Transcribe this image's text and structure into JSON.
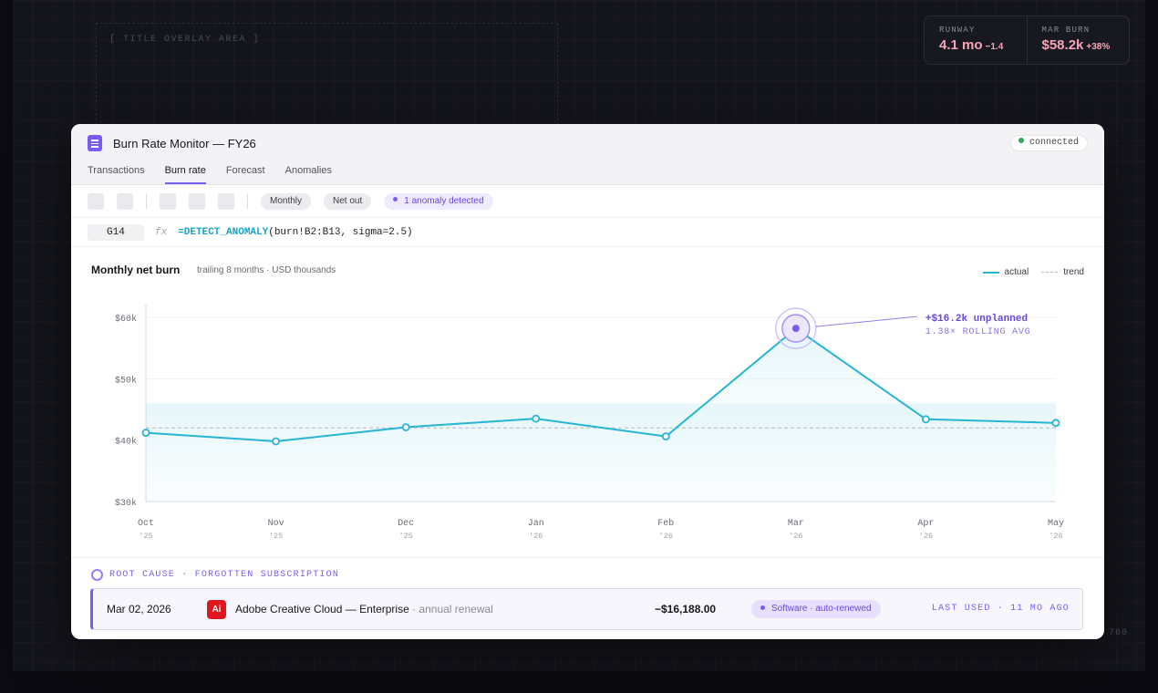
{
  "backdrop": {
    "overlay_label": "[ TITLE OVERLAY AREA ]",
    "corner_label": "760"
  },
  "stats": [
    {
      "label": "RUNWAY",
      "value": "4.1 mo",
      "delta": "−1.4"
    },
    {
      "label": "MAR BURN",
      "value": "$58.2k",
      "delta": "+38%"
    }
  ],
  "window": {
    "title": "Burn Rate Monitor — FY26",
    "status": "connected",
    "tabs": [
      {
        "label": "Transactions",
        "active": false
      },
      {
        "label": "Burn rate",
        "active": true
      },
      {
        "label": "Forecast",
        "active": false
      },
      {
        "label": "Anomalies",
        "active": false
      }
    ]
  },
  "toolbar": {
    "period": "Monthly",
    "measure": "Net out",
    "anomaly": "1 anomaly detected"
  },
  "formula_bar": {
    "cell": "G14",
    "fx": "fx",
    "function": "=DETECT_ANOMALY",
    "args": "(burn!B2:B13, sigma=2.5)"
  },
  "chart_data": {
    "type": "line",
    "title": "Monthly net burn",
    "subtitle": "trailing 8 months · USD thousands",
    "categories": [
      "Oct",
      "Nov",
      "Dec",
      "Jan",
      "Feb",
      "Mar",
      "Apr",
      "May"
    ],
    "category_years": [
      "'25",
      "'25",
      "'25",
      "'26",
      "'26",
      "'26",
      "'26",
      "'26"
    ],
    "series": [
      {
        "name": "actual",
        "values": [
          41.2,
          39.8,
          42.1,
          43.5,
          40.6,
          58.2,
          43.4,
          42.8
        ]
      }
    ],
    "trend": {
      "name": "trend",
      "value": 42.0
    },
    "band": [
      38.0,
      46.0
    ],
    "y_ticks": [
      "$30k",
      "$40k",
      "$50k",
      "$60k"
    ],
    "ylim": [
      30,
      60
    ],
    "anomaly": {
      "index": 5,
      "label": "+$16.2k unplanned",
      "sublabel": "1.38× ROLLING AVG"
    },
    "legend_position": "top-right",
    "colors": {
      "actual": "#26b5d3",
      "trend": "#b8b8c2",
      "anomaly": "#7a5cf0"
    }
  },
  "root_cause": {
    "label": "ROOT CAUSE · FORGOTTEN SUBSCRIPTION",
    "transaction": {
      "date": "Mar 02, 2026",
      "icon_text": "Ai",
      "vendor": "Adobe Creative Cloud — Enterprise",
      "separator": " · ",
      "note": "annual renewal",
      "amount": "−$16,188.00",
      "category": "Software · auto-renewed",
      "last_used": "LAST USED · 11 MO AGO"
    }
  }
}
